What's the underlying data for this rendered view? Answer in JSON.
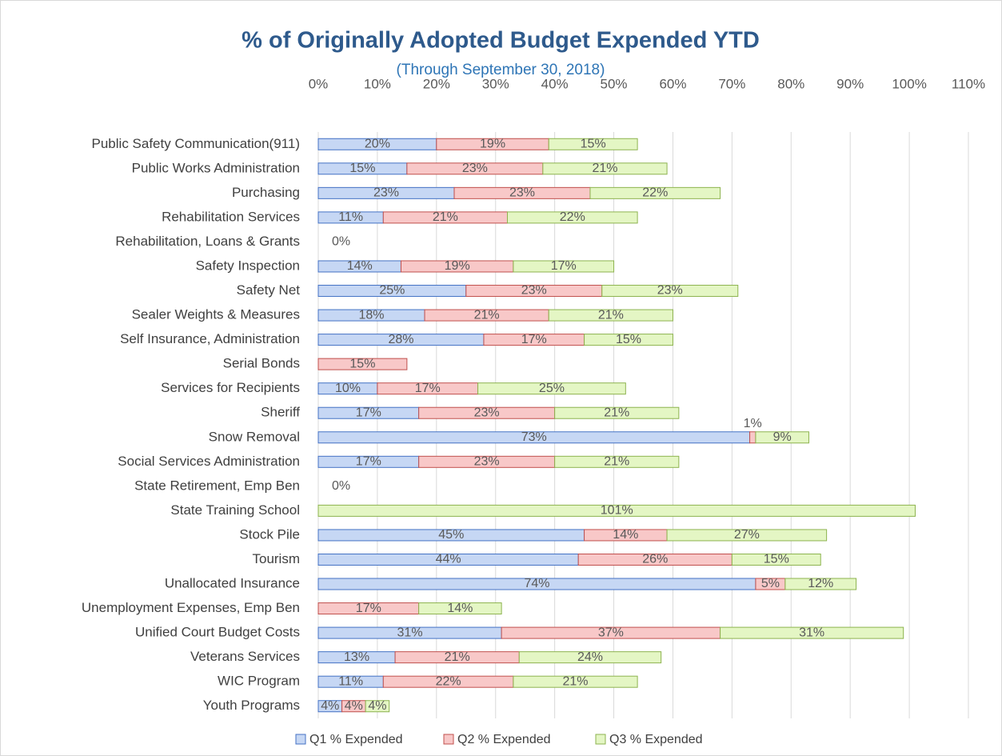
{
  "chart_data": {
    "type": "stacked_bar_horizontal",
    "title": "% of Originally Adopted Budget Expended YTD",
    "subtitle": "(Through September 30, 2018)",
    "categories": [
      "Public Safety Communication(911)",
      "Public Works Administration",
      "Purchasing",
      "Rehabilitation Services",
      "Rehabilitation, Loans & Grants",
      "Safety Inspection",
      "Safety Net",
      "Sealer Weights & Measures",
      "Self Insurance, Administration",
      "Serial Bonds",
      "Services for Recipients",
      "Sheriff",
      "Snow Removal",
      "Social Services Administration",
      "State Retirement, Emp Ben",
      "State Training School",
      "Stock Pile",
      "Tourism",
      "Unallocated Insurance",
      "Unemployment Expenses, Emp Ben",
      "Unified Court Budget Costs",
      "Veterans Services",
      "WIC Program",
      "Youth Programs"
    ],
    "series": [
      {
        "name": "Q1 % Expended",
        "color": "#c6d7f4",
        "stroke": "#4472c4",
        "values": [
          20,
          15,
          23,
          11,
          0,
          14,
          25,
          18,
          28,
          null,
          10,
          17,
          73,
          17,
          0,
          null,
          45,
          44,
          74,
          null,
          31,
          13,
          11,
          4
        ],
        "value_labels": [
          "20%",
          "15%",
          "23%",
          "11%",
          "0%",
          "14%",
          "25%",
          "18%",
          "28%",
          null,
          "10%",
          "17%",
          "73%",
          "17%",
          "0%",
          null,
          "45%",
          "44%",
          "74%",
          null,
          "31%",
          "13%",
          "11%",
          "4%"
        ]
      },
      {
        "name": "Q2 % Expended",
        "color": "#f8c8c8",
        "stroke": "#c0504d",
        "values": [
          19,
          23,
          23,
          21,
          null,
          19,
          23,
          21,
          17,
          15,
          17,
          23,
          1,
          23,
          null,
          null,
          14,
          26,
          5,
          17,
          37,
          21,
          22,
          4
        ],
        "value_labels": [
          "19%",
          "23%",
          "23%",
          "21%",
          null,
          "19%",
          "23%",
          "21%",
          "17%",
          "15%",
          "17%",
          "23%",
          "1%",
          "23%",
          null,
          null,
          "14%",
          "26%",
          "5%",
          "17%",
          "37%",
          "21%",
          "22%",
          "4%"
        ]
      },
      {
        "name": "Q3 % Expended",
        "color": "#e4f6c4",
        "stroke": "#8db34f",
        "values": [
          15,
          21,
          22,
          22,
          null,
          17,
          23,
          21,
          15,
          null,
          25,
          21,
          9,
          21,
          null,
          101,
          27,
          15,
          12,
          14,
          31,
          24,
          21,
          4
        ],
        "value_labels": [
          "15%",
          "21%",
          "22%",
          "22%",
          null,
          "17%",
          "23%",
          "21%",
          "15%",
          null,
          "25%",
          "21%",
          "9%",
          "21%",
          null,
          "101%",
          "27%",
          "15%",
          "12%",
          "14%",
          "31%",
          "24%",
          "21%",
          "4%"
        ]
      }
    ],
    "xlim": [
      0,
      110
    ],
    "xticks": [
      {
        "value": 0,
        "label": "0%"
      },
      {
        "value": 10,
        "label": "10%"
      },
      {
        "value": 20,
        "label": "20%"
      },
      {
        "value": 30,
        "label": "30%"
      },
      {
        "value": 40,
        "label": "40%"
      },
      {
        "value": 50,
        "label": "50%"
      },
      {
        "value": 60,
        "label": "60%"
      },
      {
        "value": 70,
        "label": "70%"
      },
      {
        "value": 80,
        "label": "80%"
      },
      {
        "value": 90,
        "label": "90%"
      },
      {
        "value": 100,
        "label": "100%"
      },
      {
        "value": 110,
        "label": "110%"
      }
    ],
    "grid": true,
    "legend": "bottom"
  }
}
